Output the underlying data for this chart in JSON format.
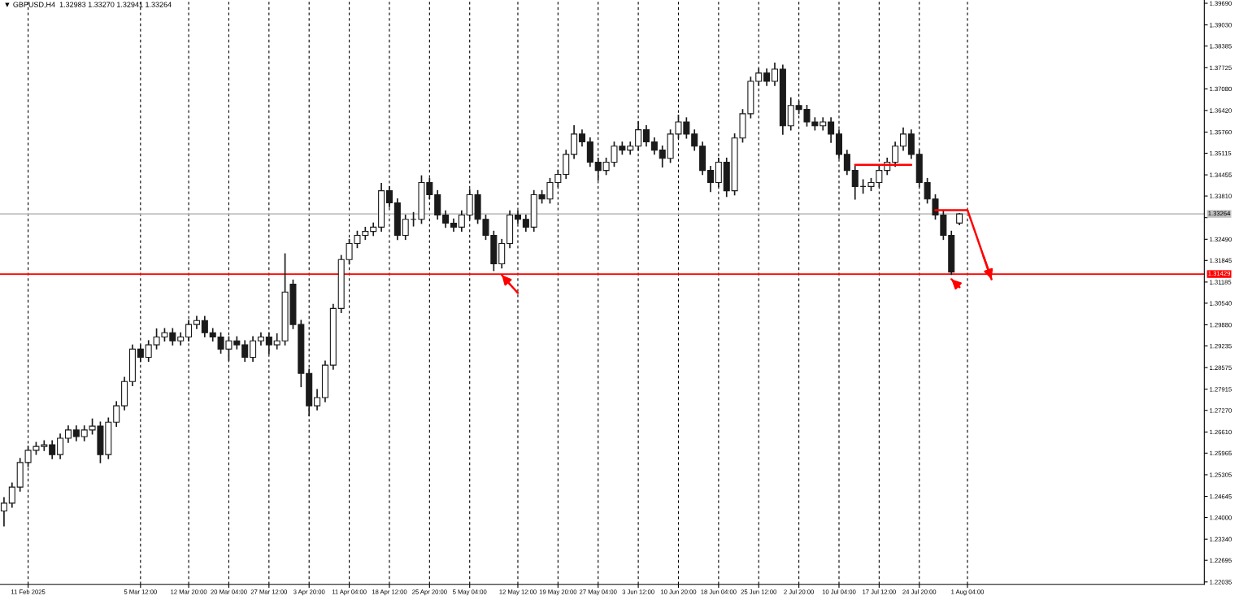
{
  "chart_data": {
    "type": "candlestick",
    "title": "▼ GBPUSD,H4  1.32983 1.33270 1.32941 1.33264",
    "categories": [
      null,
      null,
      null,
      "11 Feb 2025",
      null,
      null,
      null,
      null,
      null,
      null,
      null,
      null,
      null,
      null,
      null,
      null,
      null,
      "5 Mar 12:00",
      null,
      null,
      null,
      null,
      null,
      "12 Mar 20:00",
      null,
      null,
      null,
      null,
      "20 Mar 04:00",
      null,
      null,
      null,
      null,
      "27 Mar 12:00",
      null,
      null,
      null,
      null,
      "3 Apr 20:00",
      null,
      null,
      null,
      null,
      "11 Apr 04:00",
      null,
      null,
      null,
      null,
      "18 Apr 12:00",
      null,
      null,
      null,
      null,
      "25 Apr 20:00",
      null,
      null,
      null,
      null,
      "5 May 04:00",
      null,
      null,
      null,
      null,
      null,
      "12 May 12:00",
      null,
      null,
      null,
      null,
      "19 May 20:00",
      null,
      null,
      null,
      null,
      "27 May 04:00",
      null,
      null,
      null,
      null,
      "3 Jun 12:00",
      null,
      null,
      null,
      null,
      "10 Jun 20:00",
      null,
      null,
      null,
      null,
      "18 Jun 04:00",
      null,
      null,
      null,
      null,
      "25 Jun 12:00",
      null,
      null,
      null,
      null,
      "2 Jul 20:00",
      null,
      null,
      null,
      null,
      "10 Jul 04:00",
      null,
      null,
      null,
      null,
      "17 Jul 12:00",
      null,
      null,
      null,
      null,
      "24 Jul 20:00",
      null,
      null,
      null,
      null,
      null,
      "1 Aug 04:00",
      null,
      null,
      null,
      null,
      null,
      null,
      null,
      null,
      null,
      null,
      null,
      null,
      null,
      null,
      null,
      null,
      null,
      null,
      null,
      null,
      null,
      null,
      null,
      null,
      null,
      null,
      null,
      null,
      null
    ],
    "ohlc": [
      [
        1.242,
        1.246,
        1.2375,
        1.2444
      ],
      [
        1.2444,
        1.2505,
        1.2432,
        1.2493
      ],
      [
        1.2493,
        1.258,
        1.2481,
        1.2568
      ],
      [
        1.2568,
        1.2617,
        1.2556,
        1.2605
      ],
      [
        1.2605,
        1.2629,
        1.2593,
        1.2617
      ],
      [
        1.2617,
        1.2634,
        1.2605,
        1.2622
      ],
      [
        1.2622,
        1.2634,
        1.258,
        1.2592
      ],
      [
        1.2592,
        1.2654,
        1.258,
        1.2642
      ],
      [
        1.2642,
        1.2679,
        1.263,
        1.2667
      ],
      [
        1.2667,
        1.2679,
        1.2635,
        1.2647
      ],
      [
        1.2647,
        1.2679,
        1.2635,
        1.2667
      ],
      [
        1.2667,
        1.27,
        1.2655,
        1.2679
      ],
      [
        1.2679,
        1.2691,
        1.2568,
        1.2592
      ],
      [
        1.2592,
        1.2703,
        1.258,
        1.2691
      ],
      [
        1.2691,
        1.2753,
        1.2679,
        1.2741
      ],
      [
        1.2741,
        1.2827,
        1.2729,
        1.2815
      ],
      [
        1.2815,
        1.2926,
        1.2803,
        1.2914
      ],
      [
        1.2914,
        1.2926,
        1.2877,
        1.2889
      ],
      [
        1.2889,
        1.2939,
        1.2877,
        1.2927
      ],
      [
        1.2927,
        1.2975,
        1.2915,
        1.2951
      ],
      [
        1.2951,
        1.2976,
        1.2939,
        1.2964
      ],
      [
        1.2964,
        1.2976,
        1.2927,
        1.2939
      ],
      [
        1.2939,
        1.2963,
        1.2927,
        1.2951
      ],
      [
        1.2951,
        1.3001,
        1.2939,
        1.2989
      ],
      [
        1.2989,
        1.3013,
        1.2977,
        1.3001
      ],
      [
        1.3001,
        1.3013,
        1.2952,
        1.2964
      ],
      [
        1.2964,
        1.2976,
        1.2939,
        1.2951
      ],
      [
        1.2951,
        1.2963,
        1.2902,
        1.2914
      ],
      [
        1.2914,
        1.2951,
        1.288,
        1.2939
      ],
      [
        1.2939,
        1.2951,
        1.2915,
        1.2927
      ],
      [
        1.2927,
        1.2939,
        1.2877,
        1.2889
      ],
      [
        1.2889,
        1.2951,
        1.2877,
        1.2939
      ],
      [
        1.2939,
        1.2963,
        1.2927,
        1.2951
      ],
      [
        1.2951,
        1.2963,
        1.29,
        1.2927
      ],
      [
        1.2927,
        1.296,
        1.2915,
        1.2939
      ],
      [
        1.2939,
        1.3204,
        1.2927,
        1.3088
      ],
      [
        1.3112,
        1.3124,
        1.2977,
        1.2989
      ],
      [
        1.2989,
        1.3001,
        1.28,
        1.284
      ],
      [
        1.284,
        1.2852,
        1.2711,
        1.2741
      ],
      [
        1.2741,
        1.279,
        1.2729,
        1.2766
      ],
      [
        1.2766,
        1.2877,
        1.2754,
        1.2865
      ],
      [
        1.2865,
        1.305,
        1.2853,
        1.3038
      ],
      [
        1.3038,
        1.3199,
        1.3026,
        1.3187
      ],
      [
        1.3187,
        1.3248,
        1.3175,
        1.3236
      ],
      [
        1.3236,
        1.3273,
        1.3224,
        1.3261
      ],
      [
        1.3261,
        1.3285,
        1.3249,
        1.3273
      ],
      [
        1.3273,
        1.3298,
        1.3261,
        1.3286
      ],
      [
        1.3286,
        1.3419,
        1.3274,
        1.3397
      ],
      [
        1.3397,
        1.3409,
        1.3348,
        1.336
      ],
      [
        1.336,
        1.3372,
        1.3249,
        1.3261
      ],
      [
        1.3261,
        1.3322,
        1.3249,
        1.331
      ],
      [
        1.331,
        1.333,
        1.329,
        1.331
      ],
      [
        1.331,
        1.3442,
        1.3298,
        1.3422
      ],
      [
        1.3422,
        1.3434,
        1.3373,
        1.3385
      ],
      [
        1.3385,
        1.3397,
        1.3311,
        1.3323
      ],
      [
        1.3323,
        1.3335,
        1.3286,
        1.3298
      ],
      [
        1.3298,
        1.331,
        1.3274,
        1.3286
      ],
      [
        1.3286,
        1.3335,
        1.3274,
        1.3323
      ],
      [
        1.3323,
        1.34,
        1.3311,
        1.3385
      ],
      [
        1.3385,
        1.3397,
        1.3298,
        1.331
      ],
      [
        1.331,
        1.3322,
        1.3249,
        1.3261
      ],
      [
        1.3261,
        1.3273,
        1.3154,
        1.3174
      ],
      [
        1.3174,
        1.3248,
        1.3162,
        1.3236
      ],
      [
        1.3236,
        1.3335,
        1.3224,
        1.3323
      ],
      [
        1.3323,
        1.3335,
        1.3298,
        1.331
      ],
      [
        1.331,
        1.3322,
        1.3274,
        1.3286
      ],
      [
        1.3286,
        1.3397,
        1.3274,
        1.3385
      ],
      [
        1.3385,
        1.3397,
        1.336,
        1.3372
      ],
      [
        1.3372,
        1.3434,
        1.336,
        1.3422
      ],
      [
        1.3422,
        1.3459,
        1.341,
        1.3447
      ],
      [
        1.3447,
        1.352,
        1.3435,
        1.3508
      ],
      [
        1.3508,
        1.3595,
        1.3496,
        1.357
      ],
      [
        1.357,
        1.3582,
        1.3534,
        1.3546
      ],
      [
        1.3546,
        1.3558,
        1.3472,
        1.3484
      ],
      [
        1.3484,
        1.3496,
        1.343,
        1.3459
      ],
      [
        1.3459,
        1.3496,
        1.3447,
        1.3484
      ],
      [
        1.3484,
        1.3545,
        1.3472,
        1.3533
      ],
      [
        1.3533,
        1.3545,
        1.3509,
        1.3521
      ],
      [
        1.3521,
        1.3545,
        1.3509,
        1.3533
      ],
      [
        1.3533,
        1.3607,
        1.3521,
        1.3583
      ],
      [
        1.3583,
        1.3595,
        1.3534,
        1.3546
      ],
      [
        1.3546,
        1.3558,
        1.3509,
        1.3521
      ],
      [
        1.3521,
        1.3533,
        1.347,
        1.3496
      ],
      [
        1.3496,
        1.3582,
        1.3484,
        1.357
      ],
      [
        1.357,
        1.3627,
        1.3558,
        1.3607
      ],
      [
        1.3607,
        1.3619,
        1.3558,
        1.357
      ],
      [
        1.357,
        1.3582,
        1.3521,
        1.3533
      ],
      [
        1.3533,
        1.3545,
        1.3447,
        1.3459
      ],
      [
        1.3459,
        1.3471,
        1.3395,
        1.3422
      ],
      [
        1.3422,
        1.3496,
        1.341,
        1.3484
      ],
      [
        1.3484,
        1.3496,
        1.338,
        1.3397
      ],
      [
        1.3397,
        1.357,
        1.3385,
        1.3558
      ],
      [
        1.3558,
        1.3644,
        1.3546,
        1.3632
      ],
      [
        1.3632,
        1.3743,
        1.362,
        1.3731
      ],
      [
        1.3731,
        1.3768,
        1.3719,
        1.3756
      ],
      [
        1.3756,
        1.3768,
        1.3719,
        1.3731
      ],
      [
        1.3731,
        1.3786,
        1.3719,
        1.3768
      ],
      [
        1.3768,
        1.378,
        1.357,
        1.3595
      ],
      [
        1.3595,
        1.368,
        1.3583,
        1.3657
      ],
      [
        1.3657,
        1.3669,
        1.3633,
        1.3645
      ],
      [
        1.3645,
        1.3657,
        1.3595,
        1.3607
      ],
      [
        1.3607,
        1.3619,
        1.3583,
        1.3595
      ],
      [
        1.3595,
        1.3619,
        1.3583,
        1.3607
      ],
      [
        1.3607,
        1.3619,
        1.3545,
        1.357
      ],
      [
        1.357,
        1.3582,
        1.3496,
        1.3508
      ],
      [
        1.3508,
        1.352,
        1.3447,
        1.3459
      ],
      [
        1.3459,
        1.3471,
        1.3372,
        1.341
      ],
      [
        1.341,
        1.343,
        1.339,
        1.341
      ],
      [
        1.341,
        1.3434,
        1.3398,
        1.3422
      ],
      [
        1.3422,
        1.3471,
        1.341,
        1.3459
      ],
      [
        1.3459,
        1.3496,
        1.3447,
        1.3484
      ],
      [
        1.3484,
        1.3545,
        1.3472,
        1.3533
      ],
      [
        1.3533,
        1.3588,
        1.3521,
        1.357
      ],
      [
        1.357,
        1.3582,
        1.3496,
        1.3508
      ],
      [
        1.3508,
        1.352,
        1.341,
        1.3422
      ],
      [
        1.3422,
        1.3434,
        1.336,
        1.3372
      ],
      [
        1.3372,
        1.3384,
        1.3311,
        1.3323
      ],
      [
        1.3323,
        1.3335,
        1.3249,
        1.3261
      ],
      [
        1.3261,
        1.3273,
        1.3142,
        1.3149
      ],
      [
        1.32983,
        1.3327,
        1.32941,
        1.33264
      ],
      null,
      null,
      null,
      null,
      null,
      null,
      null,
      null,
      null,
      null,
      null,
      null,
      null,
      null,
      null,
      null,
      null,
      null,
      null,
      null,
      null,
      null,
      null,
      null,
      null,
      null,
      null,
      null,
      null,
      null
    ],
    "color": "#1a1a1a",
    "series": [
      {
        "type": "line",
        "color": "#ff0000",
        "values": [
          null,
          null,
          null,
          null,
          null,
          null,
          null,
          null,
          null,
          null,
          null,
          null,
          null,
          null,
          null,
          null,
          null,
          null,
          null,
          null,
          null,
          null,
          null,
          null,
          null,
          null,
          null,
          null,
          null,
          null,
          null,
          null,
          null,
          null,
          null,
          null,
          null,
          null,
          null,
          null,
          null,
          null,
          null,
          null,
          null,
          null,
          null,
          null,
          null,
          null,
          null,
          null,
          null,
          null,
          null,
          null,
          null,
          null,
          null,
          null,
          null,
          null,
          null,
          null,
          null,
          null,
          null,
          null,
          null,
          null,
          null,
          null,
          null,
          null,
          null,
          null,
          null,
          null,
          null,
          null,
          null,
          null,
          null,
          null,
          null,
          null,
          null,
          null,
          null,
          null,
          null,
          null,
          null,
          null,
          null,
          null,
          null,
          null,
          null,
          null,
          null,
          null,
          null,
          null,
          null,
          null,
          1.3476,
          1.3476,
          1.3476,
          1.3476,
          1.3476,
          1.3476,
          1.3476,
          1.3476,
          null,
          null,
          null,
          null,
          null,
          null,
          null,
          null,
          null,
          null,
          null,
          null,
          null,
          null,
          null,
          null,
          null,
          null,
          null,
          null,
          null,
          null,
          null,
          null,
          null,
          null,
          null,
          null,
          null,
          null,
          null,
          null,
          null,
          null,
          null,
          null
        ]
      },
      {
        "type": "line",
        "color": "#ff0000",
        "values": [
          null,
          null,
          null,
          null,
          null,
          null,
          null,
          null,
          null,
          null,
          null,
          null,
          null,
          null,
          null,
          null,
          null,
          null,
          null,
          null,
          null,
          null,
          null,
          null,
          null,
          null,
          null,
          null,
          null,
          null,
          null,
          null,
          null,
          null,
          null,
          null,
          null,
          null,
          null,
          null,
          null,
          null,
          null,
          null,
          null,
          null,
          null,
          null,
          null,
          null,
          null,
          null,
          null,
          null,
          null,
          null,
          null,
          null,
          null,
          null,
          null,
          null,
          null,
          null,
          null,
          null,
          null,
          null,
          null,
          null,
          null,
          null,
          null,
          null,
          null,
          null,
          null,
          null,
          null,
          null,
          null,
          null,
          null,
          null,
          null,
          null,
          null,
          null,
          null,
          null,
          null,
          null,
          null,
          null,
          null,
          null,
          null,
          null,
          null,
          null,
          null,
          null,
          null,
          null,
          null,
          null,
          null,
          null,
          null,
          null,
          null,
          null,
          null,
          null,
          null,
          null,
          1.3338,
          1.3338,
          1.3338,
          1.3338,
          1.3338,
          null,
          null,
          null,
          null,
          null,
          null,
          null,
          null,
          null,
          null,
          null,
          null,
          null,
          null,
          null,
          null,
          null,
          null,
          null,
          null,
          null,
          null,
          null,
          null,
          null,
          null,
          null,
          null,
          null
        ]
      },
      {
        "type": "line",
        "color": "#ff0000",
        "values": [
          null,
          null,
          null,
          null,
          null,
          null,
          null,
          null,
          null,
          null,
          null,
          null,
          null,
          null,
          null,
          null,
          null,
          null,
          null,
          null,
          null,
          null,
          null,
          null,
          null,
          null,
          null,
          null,
          null,
          null,
          null,
          null,
          null,
          null,
          null,
          null,
          null,
          null,
          null,
          null,
          null,
          null,
          null,
          null,
          null,
          null,
          null,
          null,
          null,
          null,
          null,
          null,
          null,
          null,
          null,
          null,
          null,
          null,
          null,
          null,
          null,
          null,
          null,
          null,
          null,
          null,
          null,
          null,
          null,
          null,
          null,
          null,
          null,
          null,
          null,
          null,
          null,
          null,
          null,
          null,
          null,
          null,
          null,
          null,
          null,
          null,
          null,
          null,
          null,
          null,
          null,
          null,
          null,
          null,
          null,
          null,
          null,
          null,
          null,
          null,
          null,
          null,
          null,
          null,
          null,
          null,
          null,
          null,
          null,
          null,
          null,
          null,
          null,
          null,
          null,
          null,
          null,
          null,
          null,
          null,
          1.3338,
          1.3268,
          1.3197,
          1.3127,
          null,
          null,
          null,
          null,
          null,
          null,
          null,
          null,
          null,
          null,
          null,
          null,
          null,
          null,
          null,
          null,
          null,
          null,
          null,
          null,
          null,
          null,
          null,
          null,
          null,
          null
        ]
      },
      {
        "type": "line",
        "color": "#ff0000",
        "values": [
          null,
          null,
          null,
          null,
          null,
          null,
          null,
          null,
          null,
          null,
          null,
          null,
          null,
          null,
          null,
          null,
          null,
          null,
          null,
          null,
          null,
          null,
          null,
          null,
          null,
          null,
          null,
          null,
          null,
          null,
          null,
          null,
          null,
          null,
          null,
          null,
          null,
          null,
          null,
          null,
          null,
          null,
          null,
          null,
          null,
          null,
          null,
          null,
          null,
          null,
          null,
          null,
          null,
          null,
          null,
          null,
          null,
          null,
          null,
          null,
          null,
          null,
          1.314,
          1.3112,
          1.3085,
          null,
          null,
          null,
          null,
          null,
          null,
          null,
          null,
          null,
          null,
          null,
          null,
          null,
          null,
          null,
          null,
          null,
          null,
          null,
          null,
          null,
          null,
          null,
          null,
          null,
          null,
          null,
          null,
          null,
          null,
          null,
          null,
          null,
          null,
          null,
          null,
          null,
          null,
          null,
          null,
          null,
          null,
          null,
          null,
          null,
          null,
          null,
          null,
          null,
          null,
          null,
          null,
          null,
          null,
          null,
          null,
          null,
          null,
          null,
          null,
          null,
          null,
          null,
          null,
          null,
          null,
          null,
          null,
          null,
          null,
          null,
          null,
          null,
          null,
          null,
          null,
          null,
          null,
          null,
          null,
          null,
          null,
          null,
          null,
          null
        ]
      },
      {
        "type": "line",
        "color": "#ff0000",
        "values": [
          null,
          null,
          null,
          null,
          null,
          null,
          null,
          null,
          null,
          null,
          null,
          null,
          null,
          null,
          null,
          null,
          null,
          null,
          null,
          null,
          null,
          null,
          null,
          null,
          null,
          null,
          null,
          null,
          null,
          null,
          null,
          null,
          null,
          null,
          null,
          null,
          null,
          null,
          null,
          null,
          null,
          null,
          null,
          null,
          null,
          null,
          null,
          null,
          null,
          null,
          null,
          null,
          null,
          null,
          null,
          null,
          null,
          null,
          null,
          null,
          null,
          null,
          null,
          null,
          null,
          null,
          null,
          null,
          null,
          null,
          null,
          null,
          null,
          null,
          null,
          null,
          null,
          null,
          null,
          null,
          null,
          null,
          null,
          null,
          null,
          null,
          null,
          null,
          null,
          null,
          null,
          null,
          null,
          null,
          null,
          null,
          null,
          null,
          null,
          null,
          null,
          null,
          null,
          null,
          null,
          null,
          null,
          null,
          null,
          null,
          null,
          null,
          null,
          null,
          null,
          null,
          null,
          null,
          1.3127,
          1.3103,
          null,
          null,
          null,
          null,
          null,
          null,
          null,
          null,
          null,
          null,
          null,
          null,
          null,
          null,
          null,
          null,
          null,
          null,
          null,
          null,
          null,
          null,
          null,
          null,
          null,
          null,
          null,
          null,
          null,
          null
        ]
      }
    ],
    "ref_lines": [
      {
        "axis": "y",
        "value": 1.31429,
        "label": "1.31429",
        "color": "#ff0000",
        "line_style": "solid"
      },
      {
        "axis": "y",
        "value": 1.33264,
        "label": "1.33264",
        "color": "#c0c0c0",
        "line_style": "solid"
      }
    ],
    "ylim": [
      1.2196,
      1.3979
    ],
    "yticks": [
      {
        "value": 1.3969,
        "label": "1.39690"
      },
      {
        "value": 1.3903,
        "label": "1.39030"
      },
      {
        "value": 1.38385,
        "label": "1.38385"
      },
      {
        "value": 1.37725,
        "label": "1.37725"
      },
      {
        "value": 1.3708,
        "label": "1.37080"
      },
      {
        "value": 1.3642,
        "label": "1.36420"
      },
      {
        "value": 1.3576,
        "label": "1.35760"
      },
      {
        "value": 1.35115,
        "label": "1.35115"
      },
      {
        "value": 1.34455,
        "label": "1.34455"
      },
      {
        "value": 1.3381,
        "label": "1.33810"
      },
      {
        "value": 1.3315,
        "label": null
      },
      {
        "value": 1.3249,
        "label": "1.32490"
      },
      {
        "value": 1.31845,
        "label": "1.31845"
      },
      {
        "value": 1.31185,
        "label": "1.31185"
      },
      {
        "value": 1.3054,
        "label": "1.30540"
      },
      {
        "value": 1.2988,
        "label": "1.29880"
      },
      {
        "value": 1.29235,
        "label": "1.29235"
      },
      {
        "value": 1.28575,
        "label": "1.28575"
      },
      {
        "value": 1.27915,
        "label": "1.27915"
      },
      {
        "value": 1.2727,
        "label": "1.27270"
      },
      {
        "value": 1.2661,
        "label": "1.26610"
      },
      {
        "value": 1.25965,
        "label": "1.25965"
      },
      {
        "value": 1.25305,
        "label": "1.25305"
      },
      {
        "value": 1.24645,
        "label": "1.24645"
      },
      {
        "value": 1.24,
        "label": "1.24000"
      },
      {
        "value": 1.2334,
        "label": "1.23340"
      },
      {
        "value": 1.22695,
        "label": "1.22695"
      },
      {
        "value": 1.22035,
        "label": "1.22035"
      }
    ],
    "grid": "x"
  }
}
